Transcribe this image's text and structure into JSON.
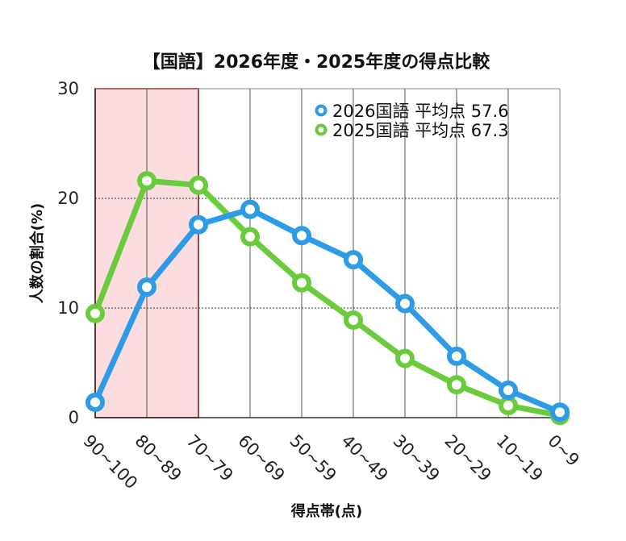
{
  "chart_data": {
    "type": "line",
    "title": "【国語】2026年度・2025年度の得点比較",
    "xlabel": "得点帯(点)",
    "ylabel": "人数の割合(%)",
    "ylim": [
      0,
      30
    ],
    "yticks": [
      "0",
      "10",
      "20",
      "30"
    ],
    "categories": [
      "90~100",
      "80~89",
      "70~79",
      "60~69",
      "50~59",
      "40~49",
      "30~39",
      "20~29",
      "10~19",
      "0~9"
    ],
    "highlight_categories": [
      "90~100",
      "80~89"
    ],
    "grid": true,
    "legend_position": "top-right",
    "series": [
      {
        "name": "2026国語 平均点 57.6",
        "color": "#2e9be6",
        "values": [
          1.4,
          11.9,
          17.6,
          19.0,
          16.6,
          14.4,
          10.4,
          5.6,
          2.5,
          0.5
        ]
      },
      {
        "name": "2025国語 平均点 67.3",
        "color": "#6acc3d",
        "values": [
          9.5,
          21.6,
          21.2,
          16.5,
          12.3,
          8.9,
          5.4,
          3.0,
          1.1,
          0.2
        ]
      }
    ]
  }
}
